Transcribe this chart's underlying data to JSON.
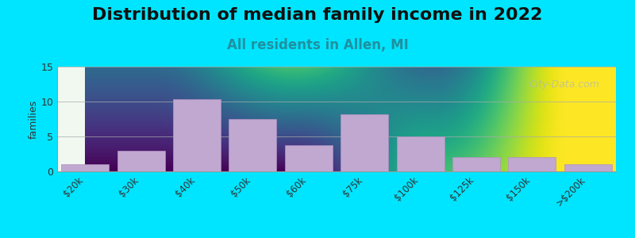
{
  "title": "Distribution of median family income in 2022",
  "subtitle": "All residents in Allen, MI",
  "categories": [
    "$20k",
    "$30k",
    "$40k",
    "$50k",
    "$60k",
    "$75k",
    "$100k",
    "$125k",
    "$150k",
    ">$200k"
  ],
  "values": [
    1,
    3,
    10.3,
    7.5,
    3.7,
    8.2,
    5,
    2,
    2,
    1
  ],
  "bar_color": "#c0a8d0",
  "bar_edge_color": "#b090c0",
  "ylabel": "families",
  "ylim": [
    0,
    15
  ],
  "yticks": [
    0,
    5,
    10,
    15
  ],
  "background_outer": "#00e5ff",
  "plot_bg_top": "#f0f8f0",
  "plot_bg_bottom": "#e8e8f8",
  "title_fontsize": 16,
  "subtitle_fontsize": 12,
  "subtitle_color": "#2090a0",
  "watermark_text": "City-Data.com",
  "watermark_color": "#b0b8b8"
}
